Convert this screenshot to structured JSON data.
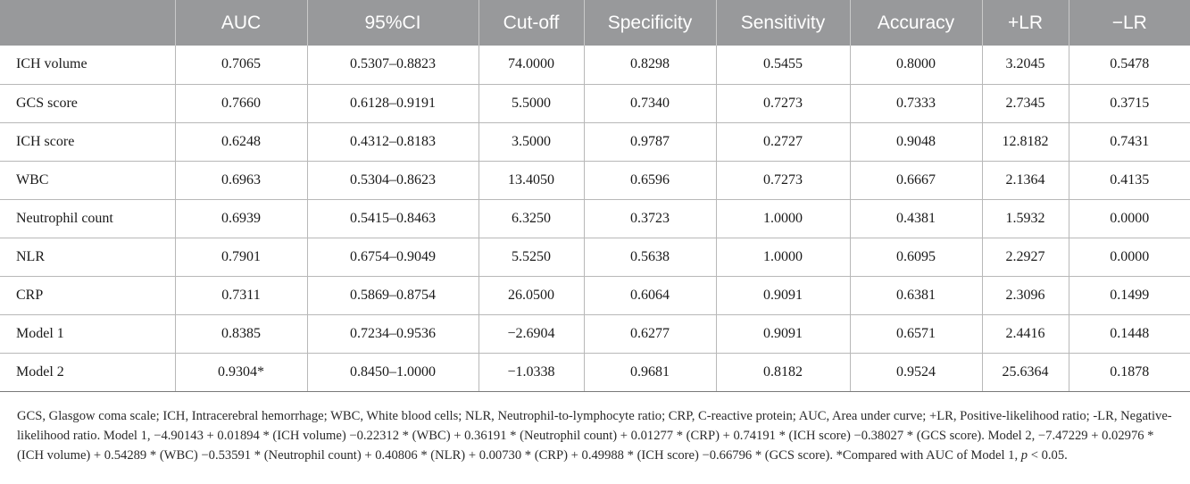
{
  "table": {
    "headers": [
      "",
      "AUC",
      "95%CI",
      "Cut-off",
      "Specificity",
      "Sensitivity",
      "Accuracy",
      "+LR",
      "−LR"
    ],
    "rows": [
      [
        "ICH volume",
        "0.7065",
        "0.5307–0.8823",
        "74.0000",
        "0.8298",
        "0.5455",
        "0.8000",
        "3.2045",
        "0.5478"
      ],
      [
        "GCS score",
        "0.7660",
        "0.6128–0.9191",
        "5.5000",
        "0.7340",
        "0.7273",
        "0.7333",
        "2.7345",
        "0.3715"
      ],
      [
        "ICH score",
        "0.6248",
        "0.4312–0.8183",
        "3.5000",
        "0.9787",
        "0.2727",
        "0.9048",
        "12.8182",
        "0.7431"
      ],
      [
        "WBC",
        "0.6963",
        "0.5304–0.8623",
        "13.4050",
        "0.6596",
        "0.7273",
        "0.6667",
        "2.1364",
        "0.4135"
      ],
      [
        "Neutrophil count",
        "0.6939",
        "0.5415–0.8463",
        "6.3250",
        "0.3723",
        "1.0000",
        "0.4381",
        "1.5932",
        "0.0000"
      ],
      [
        "NLR",
        "0.7901",
        "0.6754–0.9049",
        "5.5250",
        "0.5638",
        "1.0000",
        "0.6095",
        "2.2927",
        "0.0000"
      ],
      [
        "CRP",
        "0.7311",
        "0.5869–0.8754",
        "26.0500",
        "0.6064",
        "0.9091",
        "0.6381",
        "2.3096",
        "0.1499"
      ],
      [
        "Model 1",
        "0.8385",
        "0.7234–0.9536",
        "−2.6904",
        "0.6277",
        "0.9091",
        "0.6571",
        "2.4416",
        "0.1448"
      ],
      [
        "Model 2",
        "0.9304*",
        "0.8450–1.0000",
        "−1.0338",
        "0.9681",
        "0.8182",
        "0.9524",
        "25.6364",
        "0.1878"
      ]
    ]
  },
  "footnote": {
    "text": "GCS, Glasgow coma scale; ICH, Intracerebral hemorrhage; WBC, White blood cells; NLR, Neutrophil-to-lymphocyte ratio; CRP, C-reactive protein; AUC, Area under curve; +LR, Positive-likelihood ratio; -LR, Negative- likelihood ratio. Model 1, −4.90143 + 0.01894 * (ICH volume) −0.22312 * (WBC) + 0.36191 * (Neutrophil count) + 0.01277 * (CRP) + 0.74191 * (ICH score) −0.38027 * (GCS score). Model 2, −7.47229 + 0.02976 * (ICH volume) + 0.54289 * (WBC) −0.53591 * (Neutrophil count) + 0.40806 * (NLR) + 0.00730 * (CRP) + 0.49988 * (ICH score) −0.66796 * (GCS score). *Compared with AUC of Model 1, ",
    "p_symbol": "p",
    "p_tail": " < 0.05."
  },
  "colors": {
    "header_bg": "#98999b",
    "header_text": "#ffffff",
    "grid": "#b8b8b8"
  }
}
